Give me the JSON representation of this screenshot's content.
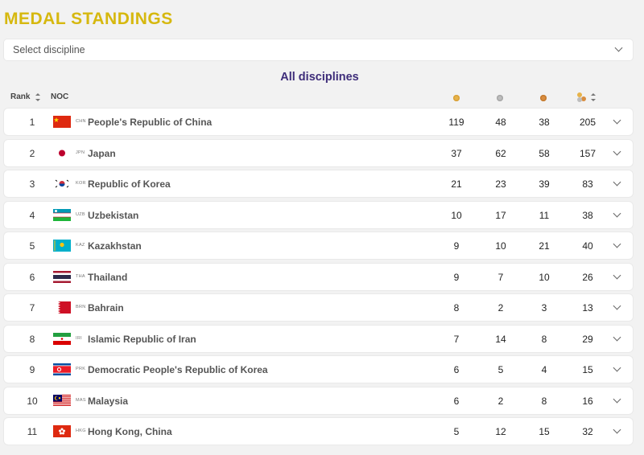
{
  "page": {
    "title": "MEDAL STANDINGS",
    "select_placeholder": "Select discipline",
    "subtitle": "All disciplines"
  },
  "header": {
    "rank": "Rank",
    "noc": "NOC",
    "gold_icon": "gold-medal-icon",
    "silver_icon": "silver-medal-icon",
    "bronze_icon": "bronze-medal-icon",
    "total_icon": "total-medals-icon"
  },
  "rows": [
    {
      "rank": "1",
      "code": "CHN",
      "name": "People's Republic of China",
      "gold": "119",
      "silver": "48",
      "bronze": "38",
      "total": "205",
      "flag": "china-flag-icon"
    },
    {
      "rank": "2",
      "code": "JPN",
      "name": "Japan",
      "gold": "37",
      "silver": "62",
      "bronze": "58",
      "total": "157",
      "flag": "japan-flag-icon"
    },
    {
      "rank": "3",
      "code": "KOR",
      "name": "Republic of Korea",
      "gold": "21",
      "silver": "23",
      "bronze": "39",
      "total": "83",
      "flag": "korea-flag-icon"
    },
    {
      "rank": "4",
      "code": "UZB",
      "name": "Uzbekistan",
      "gold": "10",
      "silver": "17",
      "bronze": "11",
      "total": "38",
      "flag": "uzbekistan-flag-icon"
    },
    {
      "rank": "5",
      "code": "KAZ",
      "name": "Kazakhstan",
      "gold": "9",
      "silver": "10",
      "bronze": "21",
      "total": "40",
      "flag": "kazakhstan-flag-icon"
    },
    {
      "rank": "6",
      "code": "THA",
      "name": "Thailand",
      "gold": "9",
      "silver": "7",
      "bronze": "10",
      "total": "26",
      "flag": "thailand-flag-icon"
    },
    {
      "rank": "7",
      "code": "BRN",
      "name": "Bahrain",
      "gold": "8",
      "silver": "2",
      "bronze": "3",
      "total": "13",
      "flag": "bahrain-flag-icon"
    },
    {
      "rank": "8",
      "code": "IRI",
      "name": "Islamic Republic of Iran",
      "gold": "7",
      "silver": "14",
      "bronze": "8",
      "total": "29",
      "flag": "iran-flag-icon"
    },
    {
      "rank": "9",
      "code": "PRK",
      "name": "Democratic People's Republic of Korea",
      "gold": "6",
      "silver": "5",
      "bronze": "4",
      "total": "15",
      "flag": "north-korea-flag-icon"
    },
    {
      "rank": "10",
      "code": "MAS",
      "name": "Malaysia",
      "gold": "6",
      "silver": "2",
      "bronze": "8",
      "total": "16",
      "flag": "malaysia-flag-icon"
    },
    {
      "rank": "11",
      "code": "HKG",
      "name": "Hong Kong, China",
      "gold": "5",
      "silver": "12",
      "bronze": "15",
      "total": "32",
      "flag": "hong-kong-flag-icon"
    }
  ],
  "colors": {
    "title": "#d6b80f",
    "subtitle": "#3e2d7a",
    "background": "#f2f2f2"
  }
}
